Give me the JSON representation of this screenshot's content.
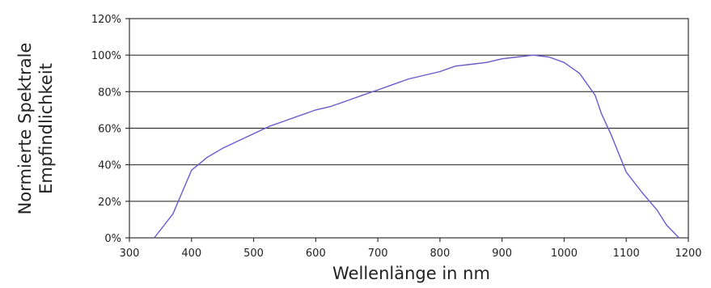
{
  "chart_data": {
    "type": "line",
    "xlabel": "Wellenlänge in nm",
    "ylabel_lines": [
      "Normierte Spektrale",
      "Empfindlichkeit"
    ],
    "xlim": [
      300,
      1200
    ],
    "ylim": [
      0,
      120
    ],
    "x_ticks": [
      300,
      400,
      500,
      600,
      700,
      800,
      900,
      1000,
      1100,
      1200
    ],
    "x_tick_labels": [
      "300",
      "400",
      "500",
      "600",
      "700",
      "800",
      "900",
      "1000",
      "1100",
      "1200"
    ],
    "y_ticks": [
      0,
      20,
      40,
      60,
      80,
      100,
      120
    ],
    "y_tick_labels": [
      "0%",
      "20%",
      "40%",
      "60%",
      "80%",
      "100%",
      "120%"
    ],
    "grid": "horizontal",
    "colors": {
      "line": "#6a5acd",
      "grid": "#333333",
      "frame": "#333333"
    },
    "series": [
      {
        "x": [
          340,
          370,
          400,
          425,
          450,
          475,
          500,
          525,
          550,
          575,
          600,
          625,
          650,
          675,
          700,
          725,
          750,
          775,
          800,
          825,
          850,
          875,
          900,
          925,
          950,
          975,
          1000,
          1025,
          1050,
          1060,
          1075,
          1100,
          1125,
          1150,
          1165,
          1185
        ],
        "y": [
          0,
          13,
          37,
          44,
          49,
          53,
          57,
          61,
          64,
          67,
          70,
          72,
          75,
          78,
          81,
          84,
          87,
          89,
          91,
          94,
          95,
          96,
          98,
          99,
          100,
          99,
          96,
          90,
          78,
          68,
          57,
          36,
          25,
          15,
          7,
          0
        ]
      }
    ]
  }
}
